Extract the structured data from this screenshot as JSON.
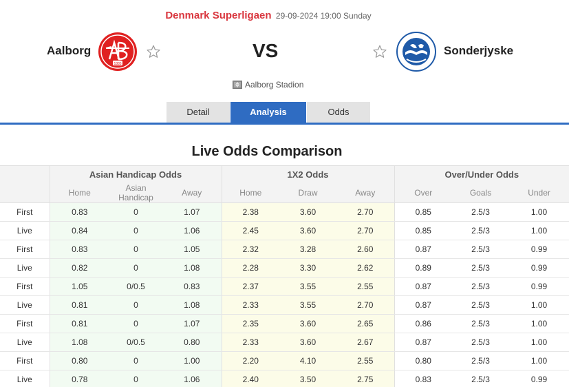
{
  "match": {
    "league": "Denmark Superligaen",
    "datetime": "29-09-2024 19:00 Sunday",
    "home_team": "Aalborg",
    "away_team": "Sonderjyske",
    "vs": "VS",
    "venue": "Aalborg Stadion",
    "home_logo_text": "AaB",
    "home_logo_year": "1885",
    "away_logo_text": "SØNDERJYSKE"
  },
  "tabs": [
    {
      "label": "Detail",
      "active": false
    },
    {
      "label": "Analysis",
      "active": true
    },
    {
      "label": "Odds",
      "active": false
    }
  ],
  "section_title": "Live Odds Comparison",
  "table": {
    "groups": [
      "Asian Handicap Odds",
      "1X2 Odds",
      "Over/Under Odds"
    ],
    "subheaders": [
      "Home",
      "Asian Handicap",
      "Away",
      "Home",
      "Draw",
      "Away",
      "Over",
      "Goals",
      "Under"
    ],
    "rows": [
      [
        "First",
        "0.83",
        "0",
        "1.07",
        "2.38",
        "3.60",
        "2.70",
        "0.85",
        "2.5/3",
        "1.00"
      ],
      [
        "Live",
        "0.84",
        "0",
        "1.06",
        "2.45",
        "3.60",
        "2.70",
        "0.85",
        "2.5/3",
        "1.00"
      ],
      [
        "First",
        "0.83",
        "0",
        "1.05",
        "2.32",
        "3.28",
        "2.60",
        "0.87",
        "2.5/3",
        "0.99"
      ],
      [
        "Live",
        "0.82",
        "0",
        "1.08",
        "2.28",
        "3.30",
        "2.62",
        "0.89",
        "2.5/3",
        "0.99"
      ],
      [
        "First",
        "1.05",
        "0/0.5",
        "0.83",
        "2.37",
        "3.55",
        "2.55",
        "0.87",
        "2.5/3",
        "0.99"
      ],
      [
        "Live",
        "0.81",
        "0",
        "1.08",
        "2.33",
        "3.55",
        "2.70",
        "0.87",
        "2.5/3",
        "1.00"
      ],
      [
        "First",
        "0.81",
        "0",
        "1.07",
        "2.35",
        "3.60",
        "2.65",
        "0.86",
        "2.5/3",
        "1.00"
      ],
      [
        "Live",
        "1.08",
        "0/0.5",
        "0.80",
        "2.33",
        "3.60",
        "2.67",
        "0.87",
        "2.5/3",
        "1.00"
      ],
      [
        "First",
        "0.80",
        "0",
        "1.00",
        "2.20",
        "4.10",
        "2.55",
        "0.80",
        "2.5/3",
        "1.00"
      ],
      [
        "Live",
        "0.78",
        "0",
        "1.06",
        "2.40",
        "3.50",
        "2.75",
        "0.83",
        "2.5/3",
        "0.99"
      ]
    ]
  },
  "colors": {
    "accent": "#2f6cc2",
    "league": "#d9363e",
    "home_logo": "#e02020",
    "away_logo": "#1f5aa8",
    "ah_bg": "#f2fbf2",
    "x12_bg": "#fcfce8"
  }
}
